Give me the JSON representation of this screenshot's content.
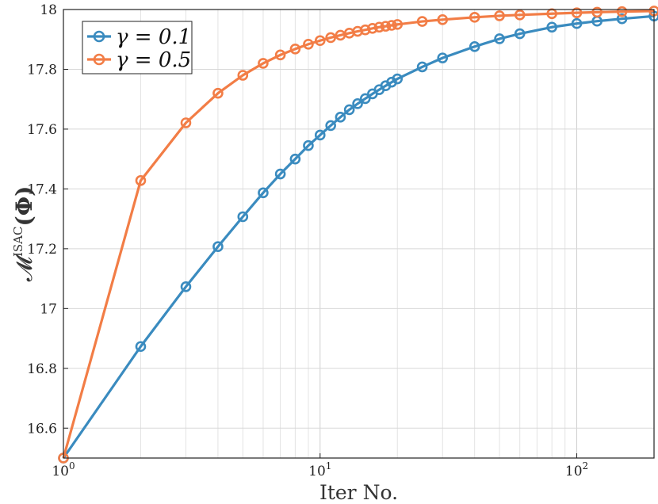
{
  "chart_data": {
    "type": "line",
    "xlabel": "Iter No.",
    "ylabel": "𝓜",
    "ylabel_sup": "ISAC",
    "ylabel_arg": "(Φ)",
    "xscale": "log",
    "xlim": [
      1,
      200
    ],
    "ylim": [
      16.5,
      18
    ],
    "x_ticks": [
      {
        "value": 1,
        "base": "10",
        "exp": "0"
      },
      {
        "value": 10,
        "base": "10",
        "exp": "1"
      },
      {
        "value": 100,
        "base": "10",
        "exp": "2"
      }
    ],
    "y_ticks": [
      {
        "value": 16.6,
        "label": "16.6"
      },
      {
        "value": 16.8,
        "label": "16.8"
      },
      {
        "value": 17.0,
        "label": "17"
      },
      {
        "value": 17.2,
        "label": "17.2"
      },
      {
        "value": 17.4,
        "label": "17.4"
      },
      {
        "value": 17.6,
        "label": "17.6"
      },
      {
        "value": 17.8,
        "label": "17.8"
      },
      {
        "value": 18.0,
        "label": "18"
      }
    ],
    "grid": true,
    "legend_position": "top-left",
    "series": [
      {
        "name": "γ = 0.1",
        "color": "#3A8BBF",
        "x": [
          1,
          2,
          3,
          4,
          5,
          6,
          7,
          8,
          9,
          10,
          11,
          12,
          13,
          14,
          15,
          16,
          17,
          18,
          19,
          20,
          25,
          30,
          40,
          50,
          60,
          80,
          100,
          120,
          150,
          200
        ],
        "values": [
          16.5,
          16.873,
          17.073,
          17.207,
          17.307,
          17.387,
          17.45,
          17.5,
          17.545,
          17.58,
          17.612,
          17.64,
          17.665,
          17.685,
          17.702,
          17.718,
          17.732,
          17.745,
          17.757,
          17.768,
          17.808,
          17.838,
          17.876,
          17.902,
          17.919,
          17.941,
          17.953,
          17.961,
          17.969,
          17.978
        ]
      },
      {
        "name": "γ = 0.5",
        "color": "#F27D46",
        "x": [
          1,
          2,
          3,
          4,
          5,
          6,
          7,
          8,
          9,
          10,
          11,
          12,
          13,
          14,
          15,
          16,
          17,
          18,
          19,
          20,
          25,
          30,
          40,
          50,
          60,
          80,
          100,
          120,
          150,
          200
        ],
        "values": [
          16.5,
          17.428,
          17.621,
          17.72,
          17.78,
          17.82,
          17.848,
          17.868,
          17.884,
          17.896,
          17.906,
          17.914,
          17.921,
          17.927,
          17.932,
          17.937,
          17.941,
          17.944,
          17.947,
          17.95,
          17.96,
          17.966,
          17.974,
          17.979,
          17.982,
          17.986,
          17.989,
          17.991,
          17.993,
          17.995
        ]
      }
    ]
  }
}
